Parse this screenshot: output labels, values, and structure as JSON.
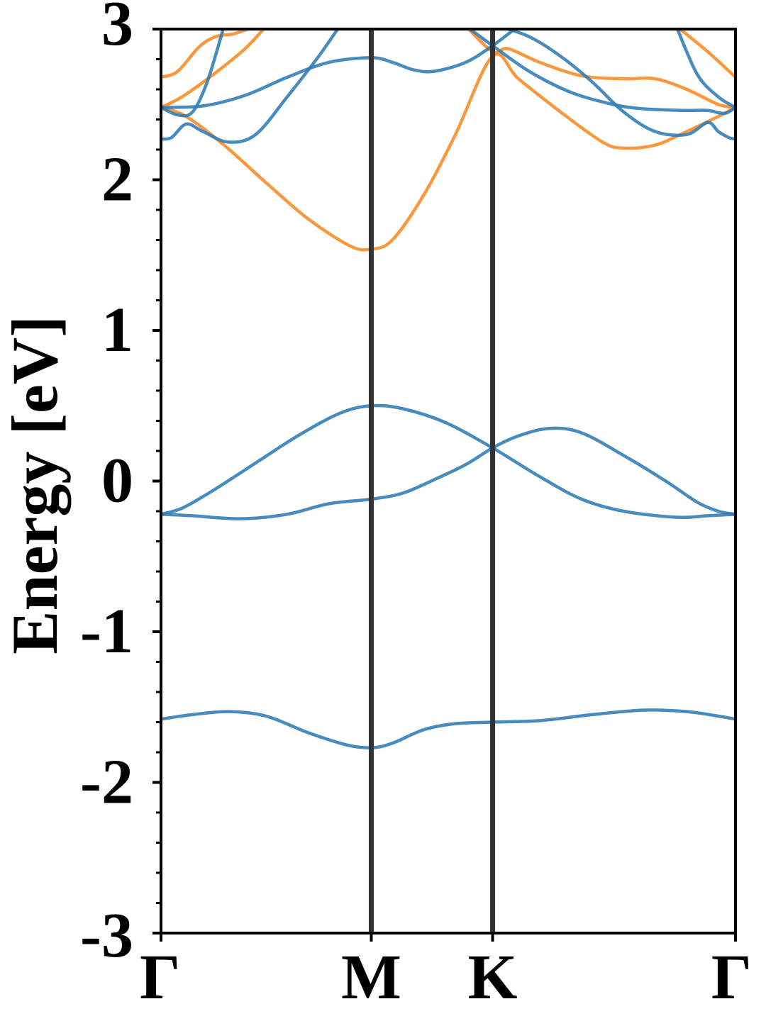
{
  "chart_data": {
    "type": "line",
    "title": "",
    "xlabel": "",
    "ylabel": "Energy [eV]",
    "ylim": [
      -3,
      3
    ],
    "xlim": [
      0,
      2.732
    ],
    "grid": false,
    "legend": "none",
    "y_ticks": [
      -3,
      -2,
      -1,
      0,
      1,
      2,
      3
    ],
    "y_tick_labels": [
      "-3",
      "-2",
      "-1",
      "0",
      "1",
      "2",
      "3"
    ],
    "y_minor_step": 0.2,
    "k_points": [
      {
        "label": "Γ",
        "x": 0
      },
      {
        "label": "M",
        "x": 1
      },
      {
        "label": "K",
        "x": 1.577
      },
      {
        "label": "Γ",
        "x": 2.732
      }
    ],
    "high_symmetry_lines": [
      1,
      1.577
    ],
    "colors": {
      "blue": "#2f7bb6",
      "orange": "#fb8a23",
      "vline": "#333333"
    },
    "series": [
      {
        "color": "blue",
        "points": [
          [
            0,
            -1.58
          ],
          [
            0.15,
            -1.55
          ],
          [
            0.32,
            -1.53
          ],
          [
            0.5,
            -1.56
          ],
          [
            0.7,
            -1.67
          ],
          [
            0.88,
            -1.75
          ],
          [
            1.0,
            -1.77
          ],
          [
            1.1,
            -1.74
          ],
          [
            1.25,
            -1.65
          ],
          [
            1.4,
            -1.61
          ],
          [
            1.577,
            -1.6
          ],
          [
            1.8,
            -1.59
          ],
          [
            2.05,
            -1.55
          ],
          [
            2.3,
            -1.52
          ],
          [
            2.5,
            -1.53
          ],
          [
            2.65,
            -1.56
          ],
          [
            2.732,
            -1.58
          ]
        ]
      },
      {
        "color": "blue",
        "points": [
          [
            0,
            -0.22
          ],
          [
            0.15,
            -0.23
          ],
          [
            0.38,
            -0.25
          ],
          [
            0.6,
            -0.22
          ],
          [
            0.8,
            -0.15
          ],
          [
            1.0,
            -0.12
          ],
          [
            1.15,
            -0.08
          ],
          [
            1.3,
            0.01
          ],
          [
            1.45,
            0.11
          ],
          [
            1.577,
            0.22
          ],
          [
            1.7,
            0.3
          ],
          [
            1.85,
            0.35
          ],
          [
            2.0,
            0.32
          ],
          [
            2.2,
            0.17
          ],
          [
            2.4,
            0.0
          ],
          [
            2.55,
            -0.14
          ],
          [
            2.65,
            -0.2
          ],
          [
            2.732,
            -0.22
          ]
        ]
      },
      {
        "color": "blue",
        "points": [
          [
            0,
            -0.22
          ],
          [
            0.1,
            -0.18
          ],
          [
            0.25,
            -0.06
          ],
          [
            0.45,
            0.12
          ],
          [
            0.65,
            0.3
          ],
          [
            0.85,
            0.45
          ],
          [
            1.0,
            0.5
          ],
          [
            1.15,
            0.48
          ],
          [
            1.35,
            0.39
          ],
          [
            1.577,
            0.22
          ],
          [
            1.8,
            0.03
          ],
          [
            2.0,
            -0.12
          ],
          [
            2.2,
            -0.2
          ],
          [
            2.45,
            -0.24
          ],
          [
            2.6,
            -0.23
          ],
          [
            2.732,
            -0.22
          ]
        ]
      },
      {
        "color": "orange",
        "points": [
          [
            0,
            2.48
          ],
          [
            0.12,
            2.42
          ],
          [
            0.3,
            2.23
          ],
          [
            0.5,
            1.98
          ],
          [
            0.7,
            1.74
          ],
          [
            0.9,
            1.56
          ],
          [
            1.0,
            1.54
          ],
          [
            1.1,
            1.6
          ],
          [
            1.25,
            1.9
          ],
          [
            1.4,
            2.3
          ],
          [
            1.577,
            2.82
          ],
          [
            1.7,
            2.67
          ],
          [
            1.9,
            2.45
          ],
          [
            2.1,
            2.25
          ],
          [
            2.2,
            2.21
          ],
          [
            2.35,
            2.23
          ],
          [
            2.5,
            2.32
          ],
          [
            2.65,
            2.42
          ],
          [
            2.732,
            2.48
          ]
        ]
      },
      {
        "color": "orange",
        "points": [
          [
            0,
            2.48
          ],
          [
            0.1,
            2.55
          ],
          [
            0.25,
            2.7
          ],
          [
            0.4,
            2.87
          ],
          [
            0.5,
            3.02
          ]
        ]
      },
      {
        "color": "orange",
        "points": [
          [
            0,
            2.68
          ],
          [
            0.08,
            2.72
          ],
          [
            0.18,
            2.88
          ],
          [
            0.26,
            2.95
          ],
          [
            0.35,
            2.97
          ],
          [
            0.45,
            3.02
          ]
        ]
      },
      {
        "color": "orange",
        "points": [
          [
            1.45,
            3.02
          ],
          [
            1.577,
            2.85
          ],
          [
            1.65,
            2.87
          ],
          [
            1.8,
            2.78
          ],
          [
            2.0,
            2.69
          ],
          [
            2.2,
            2.67
          ],
          [
            2.35,
            2.67
          ],
          [
            2.5,
            2.6
          ],
          [
            2.65,
            2.5
          ],
          [
            2.732,
            2.48
          ]
        ]
      },
      {
        "color": "orange",
        "points": [
          [
            2.45,
            3.02
          ],
          [
            2.6,
            2.85
          ],
          [
            2.732,
            2.68
          ]
        ]
      },
      {
        "color": "blue",
        "points": [
          [
            0,
            2.27
          ],
          [
            0.05,
            2.28
          ],
          [
            0.12,
            2.37
          ],
          [
            0.2,
            2.32
          ],
          [
            0.32,
            2.25
          ],
          [
            0.45,
            2.3
          ],
          [
            0.6,
            2.55
          ],
          [
            0.75,
            2.82
          ],
          [
            0.85,
            3.02
          ]
        ]
      },
      {
        "color": "blue",
        "points": [
          [
            0,
            2.48
          ],
          [
            0.2,
            2.49
          ],
          [
            0.4,
            2.56
          ],
          [
            0.6,
            2.68
          ],
          [
            0.8,
            2.78
          ],
          [
            1.0,
            2.81
          ],
          [
            1.1,
            2.78
          ],
          [
            1.2,
            2.73
          ],
          [
            1.3,
            2.72
          ],
          [
            1.45,
            2.78
          ],
          [
            1.577,
            2.89
          ],
          [
            1.7,
            3.02
          ]
        ]
      },
      {
        "color": "blue",
        "points": [
          [
            0,
            2.48
          ],
          [
            0.08,
            2.43
          ],
          [
            0.15,
            2.45
          ],
          [
            0.22,
            2.65
          ],
          [
            0.3,
            3.02
          ]
        ]
      },
      {
        "color": "blue",
        "points": [
          [
            1.45,
            3.02
          ],
          [
            1.577,
            2.89
          ],
          [
            1.75,
            2.72
          ],
          [
            1.95,
            2.58
          ],
          [
            2.15,
            2.5
          ],
          [
            2.3,
            2.47
          ],
          [
            2.5,
            2.46
          ],
          [
            2.6,
            2.46
          ],
          [
            2.68,
            2.44
          ],
          [
            2.732,
            2.48
          ]
        ]
      },
      {
        "color": "blue",
        "points": [
          [
            1.6,
            3.02
          ],
          [
            1.75,
            2.95
          ],
          [
            1.9,
            2.82
          ],
          [
            2.05,
            2.65
          ],
          [
            2.2,
            2.45
          ],
          [
            2.35,
            2.32
          ],
          [
            2.5,
            2.3
          ],
          [
            2.6,
            2.38
          ],
          [
            2.65,
            2.32
          ],
          [
            2.7,
            2.28
          ],
          [
            2.732,
            2.27
          ]
        ]
      },
      {
        "color": "blue",
        "points": [
          [
            2.45,
            3.02
          ],
          [
            2.55,
            2.7
          ],
          [
            2.65,
            2.55
          ],
          [
            2.732,
            2.48
          ]
        ]
      }
    ]
  }
}
